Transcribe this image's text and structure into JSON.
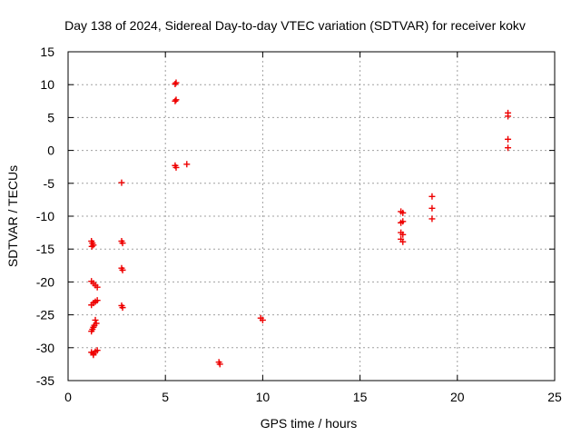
{
  "chart_data": {
    "type": "scatter",
    "title": "Day 138 of 2024, Sidereal Day-to-day VTEC variation (SDTVAR) for receiver kokv",
    "xlabel": "GPS time / hours",
    "ylabel": "SDTVAR / TECUs",
    "xlim": [
      0,
      25
    ],
    "ylim": [
      -35,
      15
    ],
    "xticks": [
      "0",
      "5",
      "10",
      "15",
      "20",
      "25"
    ],
    "yticks": [
      "15",
      "10",
      "5",
      "0",
      "-5",
      "-10",
      "-15",
      "-20",
      "-25",
      "-30",
      "-35"
    ],
    "xtick_values": [
      0,
      5,
      10,
      15,
      20,
      25
    ],
    "ytick_values": [
      15,
      10,
      5,
      0,
      -5,
      -10,
      -15,
      -20,
      -25,
      -30,
      -35
    ],
    "grid": true,
    "marker": "+",
    "color": "#ee0000",
    "series": [
      {
        "name": "kokv",
        "points": [
          [
            1.2,
            -13.8
          ],
          [
            1.25,
            -14.1
          ],
          [
            1.3,
            -14.4
          ],
          [
            1.22,
            -14.6
          ],
          [
            1.2,
            -19.9
          ],
          [
            1.3,
            -20.2
          ],
          [
            1.4,
            -20.5
          ],
          [
            1.5,
            -20.8
          ],
          [
            1.2,
            -23.5
          ],
          [
            1.3,
            -23.2
          ],
          [
            1.4,
            -23.0
          ],
          [
            1.5,
            -22.8
          ],
          [
            1.4,
            -25.8
          ],
          [
            1.45,
            -26.3
          ],
          [
            1.35,
            -26.6
          ],
          [
            1.3,
            -26.9
          ],
          [
            1.25,
            -27.2
          ],
          [
            1.2,
            -27.5
          ],
          [
            1.2,
            -30.7
          ],
          [
            1.3,
            -30.9
          ],
          [
            1.4,
            -30.6
          ],
          [
            1.5,
            -30.4
          ],
          [
            1.3,
            -31.1
          ],
          [
            2.75,
            -4.9
          ],
          [
            2.75,
            -13.8
          ],
          [
            2.8,
            -14.1
          ],
          [
            2.75,
            -17.9
          ],
          [
            2.8,
            -18.2
          ],
          [
            2.75,
            -23.6
          ],
          [
            2.8,
            -23.9
          ],
          [
            5.5,
            10.1
          ],
          [
            5.55,
            10.3
          ],
          [
            5.5,
            7.5
          ],
          [
            5.55,
            7.7
          ],
          [
            5.5,
            -2.3
          ],
          [
            5.55,
            -2.6
          ],
          [
            6.1,
            -2.1
          ],
          [
            7.75,
            -32.2
          ],
          [
            7.8,
            -32.5
          ],
          [
            9.9,
            -25.5
          ],
          [
            10.0,
            -25.8
          ],
          [
            17.1,
            -9.3
          ],
          [
            17.2,
            -9.5
          ],
          [
            17.1,
            -11.0
          ],
          [
            17.2,
            -10.8
          ],
          [
            17.1,
            -12.5
          ],
          [
            17.2,
            -12.8
          ],
          [
            17.1,
            -13.5
          ],
          [
            17.2,
            -13.9
          ],
          [
            18.7,
            -7.0
          ],
          [
            18.7,
            -8.8
          ],
          [
            18.7,
            -10.4
          ],
          [
            22.6,
            5.7
          ],
          [
            22.6,
            5.2
          ],
          [
            22.6,
            1.7
          ],
          [
            22.6,
            0.4
          ]
        ]
      }
    ]
  }
}
